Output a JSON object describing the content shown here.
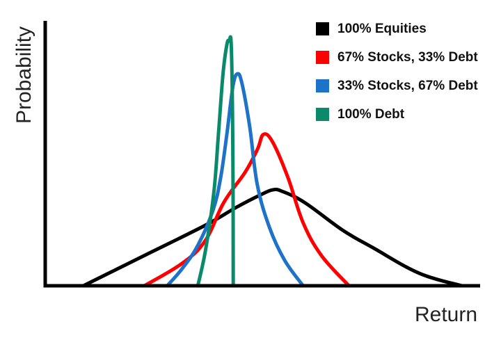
{
  "chart_data": {
    "type": "line",
    "title": "",
    "xlabel": "Return",
    "ylabel": "Probability",
    "x_tick_labels": [],
    "y_tick_labels": [],
    "grid": false,
    "legend_position": "top-right",
    "series": [
      {
        "name": "100% Equities",
        "color": "#000000",
        "points": [
          [
            -0.3,
            0
          ],
          [
            0.1,
            0.12
          ],
          [
            0.5,
            0.24
          ],
          [
            0.7,
            0.31
          ],
          [
            0.86,
            0.36
          ],
          [
            0.94,
            0.38
          ],
          [
            1.0,
            0.375
          ],
          [
            1.15,
            0.33
          ],
          [
            1.4,
            0.22
          ],
          [
            1.6,
            0.15
          ],
          [
            1.9,
            0.05
          ],
          [
            2.18,
            0
          ]
        ]
      },
      {
        "name": "67% Stocks, 33% Debt",
        "color": "#ff0000",
        "points": [
          [
            0.1,
            0
          ],
          [
            0.35,
            0.09
          ],
          [
            0.5,
            0.18
          ],
          [
            0.62,
            0.33
          ],
          [
            0.76,
            0.45
          ],
          [
            0.84,
            0.54
          ],
          [
            0.88,
            0.6
          ],
          [
            0.94,
            0.57
          ],
          [
            1.04,
            0.43
          ],
          [
            1.14,
            0.25
          ],
          [
            1.26,
            0.12
          ],
          [
            1.44,
            0
          ]
        ]
      },
      {
        "name": "33% Stocks, 67% Debt",
        "color": "#1e73c8",
        "points": [
          [
            0.25,
            0
          ],
          [
            0.35,
            0.07
          ],
          [
            0.45,
            0.16
          ],
          [
            0.55,
            0.3
          ],
          [
            0.6,
            0.43
          ],
          [
            0.64,
            0.6
          ],
          [
            0.68,
            0.79
          ],
          [
            0.71,
            0.84
          ],
          [
            0.74,
            0.8
          ],
          [
            0.79,
            0.63
          ],
          [
            0.84,
            0.4
          ],
          [
            0.92,
            0.23
          ],
          [
            1.02,
            0.1
          ],
          [
            1.14,
            0
          ]
        ]
      },
      {
        "name": "100% Debt",
        "color": "#0a8a6a",
        "points": [
          [
            0.45,
            0
          ],
          [
            0.5,
            0.14
          ],
          [
            0.555,
            0.37
          ],
          [
            0.585,
            0.6
          ],
          [
            0.615,
            0.84
          ],
          [
            0.64,
            0.955
          ],
          [
            0.655,
            0.97
          ],
          [
            0.67,
            0.94
          ],
          [
            0.68,
            0.5
          ],
          [
            0.682,
            0
          ]
        ]
      }
    ],
    "xlim": [
      -0.55,
      2.3
    ],
    "ylim": [
      0,
      1.05
    ]
  }
}
